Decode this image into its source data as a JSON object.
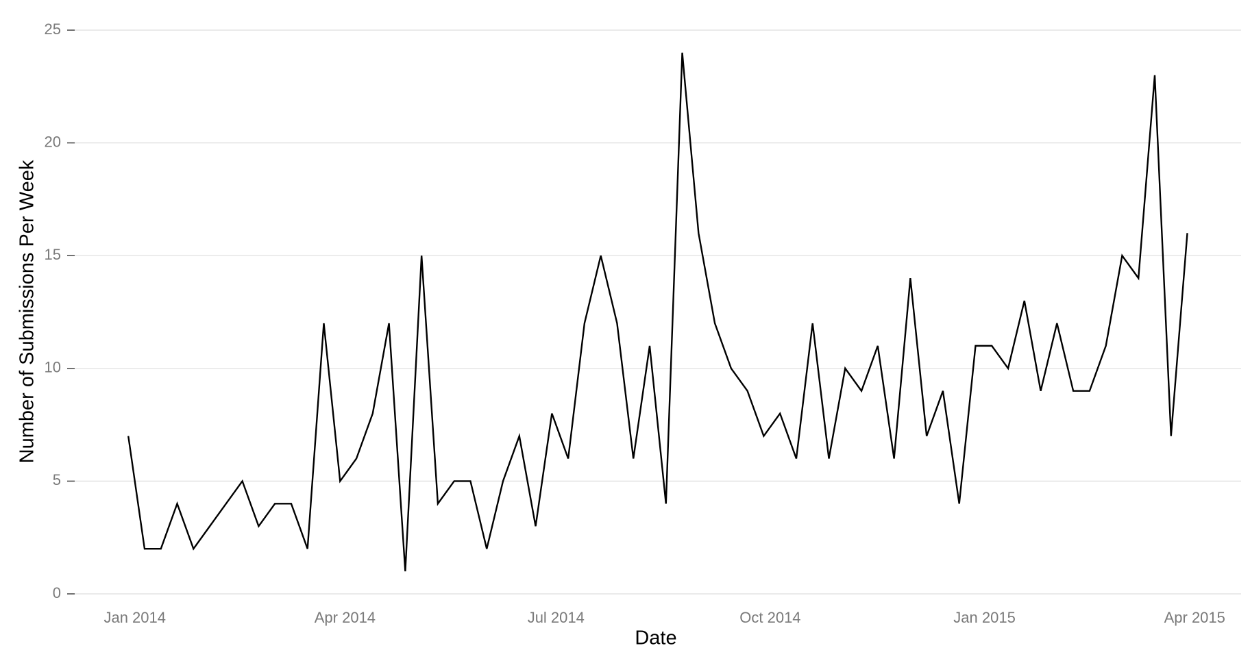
{
  "chart_data": {
    "type": "line",
    "x_label": "Date",
    "y_label": "Number of Submissions Per Week",
    "categories": [
      null,
      null,
      null,
      null,
      null,
      null,
      null,
      null,
      null,
      null,
      null,
      null,
      null,
      null,
      null,
      null,
      null,
      null,
      null,
      null,
      null,
      null,
      null,
      null,
      null,
      null,
      null,
      null,
      null,
      null,
      null,
      null,
      null,
      null,
      null,
      null,
      null,
      null,
      null,
      null,
      null,
      null,
      null,
      null,
      null,
      null,
      null,
      null,
      null,
      null,
      null,
      null,
      null,
      null,
      null,
      null,
      null,
      null,
      null,
      null,
      null,
      null,
      null,
      null,
      null,
      null
    ],
    "values": [
      7,
      2,
      2,
      4,
      2,
      3,
      4,
      5,
      3,
      4,
      4,
      2,
      12,
      5,
      6,
      8,
      12,
      1,
      15,
      4,
      5,
      5,
      2,
      5,
      7,
      3,
      8,
      6,
      12,
      15,
      12,
      6,
      11,
      4,
      24,
      16,
      12,
      10,
      9,
      7,
      8,
      6,
      12,
      6,
      10,
      9,
      11,
      6,
      14,
      7,
      9,
      4,
      11,
      11,
      10,
      13,
      9,
      12,
      9,
      9,
      11,
      15,
      14,
      23,
      7,
      16
    ],
    "color": "#000000",
    "xlim": [
      -3.5,
      68.3
    ],
    "xticks": [
      {
        "value": 0.4,
        "label": "Jan 2014"
      },
      {
        "value": 13.3,
        "label": "Apr 2014"
      },
      {
        "value": 26.25,
        "label": "Jul 2014"
      },
      {
        "value": 39.4,
        "label": "Oct 2014"
      },
      {
        "value": 52.55,
        "label": "Jan 2015"
      },
      {
        "value": 65.45,
        "label": "Apr 2015"
      }
    ],
    "ylim": [
      0,
      25
    ],
    "yticks": [
      0,
      5,
      10,
      15,
      20,
      25
    ],
    "grid": true
  }
}
